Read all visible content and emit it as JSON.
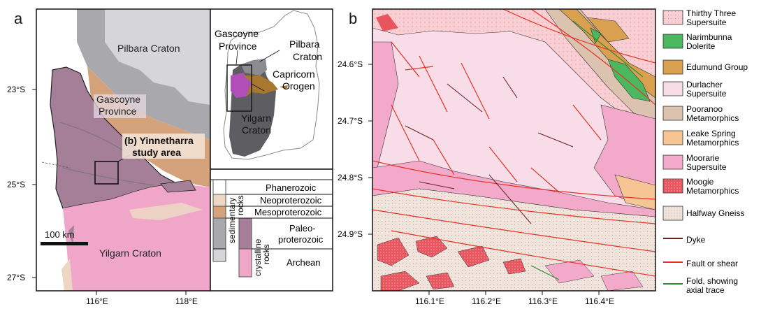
{
  "panel_a": {
    "letter": "a",
    "labels": {
      "pilbara": "Pilbara Craton",
      "gascoyne_1": "Gascoyne",
      "gascoyne_2": "Province",
      "study_1": "(b) Yinnetharra",
      "study_2": "study area",
      "yilgarn": "Yilgarn Craton",
      "scale": "100 km"
    },
    "lat_ticks": [
      "23°S",
      "25°S",
      "27°S"
    ],
    "lon_ticks": [
      "116°E",
      "118°E"
    ],
    "inset": {
      "gascoyne_1": "Gascoyne",
      "gascoyne_2": "Province",
      "pilbara_1": "Pilbara",
      "pilbara_2": "Craton",
      "capricorn_1": "Capricorn",
      "capricorn_2": "Orogen",
      "yilgarn_1": "Yilgarn",
      "yilgarn_2": "Craton"
    },
    "age_legend": {
      "rows": [
        "Phanerozoic",
        "Neoproterozoic",
        "Mesoproterozoic",
        "Paleo-",
        "proterozoic",
        "Archean"
      ],
      "group_sedimentary_1": "sedimentary",
      "group_sedimentary_2": "rocks",
      "group_crystalline_1": "crystalline",
      "group_crystalline_2": "rocks"
    }
  },
  "panel_b": {
    "letter": "b",
    "lat_ticks": [
      "24.6°S",
      "24.7°S",
      "24.8°S",
      "24.9°S"
    ],
    "lon_ticks": [
      "116.1°E",
      "116.2°E",
      "116.3°E",
      "116.4°E"
    ]
  },
  "legend": [
    {
      "label_1": "Thirthy Three",
      "label_2": "Supersuite",
      "color": "#f9cfd3"
    },
    {
      "label_1": "Narimbunna",
      "label_2": "Dolerite",
      "color": "#4bb85f"
    },
    {
      "label_1": "Edumund Group",
      "label_2": "",
      "color": "#d9a04f"
    },
    {
      "label_1": "Durlacher",
      "label_2": "Supersuite",
      "color": "#f8dce8"
    },
    {
      "label_1": "Pooranoo",
      "label_2": "Metamorphics",
      "color": "#dcc3b0"
    },
    {
      "label_1": "Leake Spring",
      "label_2": "Metamorphics",
      "color": "#f6c593"
    },
    {
      "label_1": "Moorarie",
      "label_2": "Supersuite",
      "color": "#f2a9ca"
    },
    {
      "label_1": "Moogie",
      "label_2": "Metamorphics",
      "color": "#e8555e"
    },
    {
      "label_1": "Halfway Gneiss",
      "label_2": "",
      "color": "#efe3db"
    },
    {
      "label_1": "Dyke",
      "label_2": "",
      "color": "#6b1f1f"
    },
    {
      "label_1": "Fault or shear",
      "label_2": "",
      "color": "#e53224"
    },
    {
      "label_1": "Fold, showing",
      "label_2": "axial trace",
      "color": "#2e8b3a"
    }
  ],
  "colors": {
    "pilbara": "#d6d6d9",
    "sed_grey": "#a9a9ad",
    "mesoproterozoic": "#d4a37c",
    "paleoproterozoic": "#a57e98",
    "archean": "#f0a6c8",
    "neoproterozoic": "#edd6c4",
    "phanerozoic": "#ffffff",
    "inset_grey": "#5e5e62",
    "fault": "#e53224",
    "dyke": "#6b1f1f"
  }
}
